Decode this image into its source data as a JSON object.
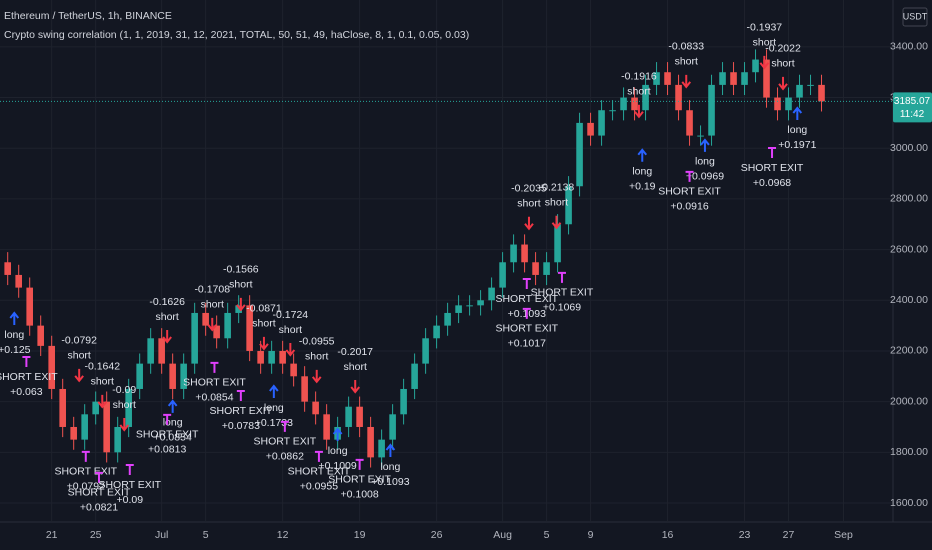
{
  "header": {
    "symbol": "Ethereum / TetherUS, 1h, BINANCE",
    "indicator": "Crypto swing correlation (1, 1, 2019, 31, 12, 2021, TOTAL, 50, 51, 49, haClose, 8, 1, 0.1, 0.05, 0.03)",
    "currency": "USDT"
  },
  "chart_data": {
    "type": "candlestick",
    "up_color": "#26a69a",
    "down_color": "#ef5350",
    "x": [
      17,
      18,
      19,
      20,
      21,
      22,
      23,
      24,
      25,
      26,
      27,
      28,
      29,
      30,
      31,
      32,
      33,
      34,
      35,
      36,
      37,
      38,
      39,
      40,
      41,
      42,
      43,
      44,
      45,
      46,
      47,
      48,
      49,
      50,
      51,
      52,
      53,
      54,
      55,
      56,
      57,
      58,
      59,
      60,
      61,
      62,
      63,
      64,
      65,
      66,
      67,
      68,
      69,
      70,
      71,
      72,
      73,
      74,
      75,
      76,
      77,
      78,
      79,
      80,
      81,
      82,
      83,
      84,
      85,
      86,
      87,
      88,
      89,
      90,
      91
    ],
    "open": [
      2550,
      2500,
      2450,
      2300,
      2220,
      2050,
      1900,
      1850,
      1950,
      2000,
      1800,
      1900,
      2050,
      2150,
      2250,
      2150,
      2050,
      2150,
      2350,
      2300,
      2250,
      2350,
      2380,
      2200,
      2150,
      2200,
      2150,
      2100,
      2000,
      1950,
      1850,
      1900,
      1980,
      1900,
      1780,
      1850,
      1950,
      2050,
      2150,
      2250,
      2300,
      2350,
      2380,
      2380,
      2400,
      2450,
      2550,
      2620,
      2550,
      2500,
      2550,
      2700,
      2850,
      3100,
      3050,
      3150,
      3150,
      3200,
      3150,
      3250,
      3300,
      3250,
      3150,
      3050,
      3050,
      3250,
      3300,
      3250,
      3300,
      3350,
      3200,
      3150,
      3200,
      3250,
      3250
    ],
    "high": [
      2590,
      2540,
      2490,
      2340,
      2260,
      2090,
      1940,
      1990,
      2040,
      2040,
      1940,
      2090,
      2190,
      2290,
      2290,
      2190,
      2190,
      2390,
      2390,
      2340,
      2390,
      2420,
      2420,
      2240,
      2240,
      2240,
      2190,
      2140,
      2040,
      1990,
      1940,
      2020,
      2020,
      1940,
      1890,
      1990,
      2090,
      2190,
      2290,
      2340,
      2390,
      2420,
      2420,
      2440,
      2490,
      2590,
      2660,
      2660,
      2590,
      2590,
      2740,
      2890,
      3140,
      3140,
      3190,
      3190,
      3240,
      3240,
      3290,
      3340,
      3340,
      3290,
      3190,
      3090,
      3290,
      3340,
      3340,
      3340,
      3390,
      3390,
      3240,
      3240,
      3290,
      3290,
      3290
    ],
    "low": [
      2460,
      2410,
      2260,
      2180,
      2010,
      1860,
      1810,
      1810,
      1910,
      1760,
      1760,
      1860,
      2010,
      2110,
      2110,
      2010,
      2010,
      2110,
      2260,
      2210,
      2210,
      2310,
      2160,
      2110,
      2110,
      2110,
      2060,
      1960,
      1910,
      1810,
      1810,
      1860,
      1860,
      1740,
      1740,
      1810,
      1910,
      2010,
      2110,
      2210,
      2260,
      2310,
      2340,
      2340,
      2360,
      2410,
      2510,
      2510,
      2460,
      2460,
      2510,
      2660,
      2810,
      3010,
      3010,
      3110,
      3110,
      3110,
      3110,
      3210,
      3210,
      3110,
      3010,
      3010,
      3010,
      3210,
      3210,
      3210,
      3260,
      3160,
      3110,
      3110,
      3160,
      3210,
      3145.07
    ],
    "close": [
      2500,
      2450,
      2300,
      2220,
      2050,
      1900,
      1850,
      1950,
      2000,
      1800,
      1900,
      2050,
      2150,
      2250,
      2150,
      2050,
      2150,
      2350,
      2300,
      2250,
      2350,
      2380,
      2200,
      2150,
      2200,
      2150,
      2100,
      2000,
      1950,
      1850,
      1900,
      1980,
      1900,
      1780,
      1850,
      1950,
      2050,
      2150,
      2250,
      2300,
      2350,
      2380,
      2380,
      2400,
      2450,
      2550,
      2620,
      2550,
      2500,
      2550,
      2700,
      2850,
      3100,
      3050,
      3150,
      3150,
      3200,
      3150,
      3250,
      3300,
      3250,
      3150,
      3050,
      3050,
      3250,
      3300,
      3250,
      3300,
      3350,
      3200,
      3150,
      3200,
      3250,
      3250,
      3185.07
    ],
    "last_price": 3185.07,
    "countdown": "11:42",
    "xlim": [
      16.3,
      97.5
    ],
    "ylim": [
      1525,
      3585
    ],
    "xticks": [
      21,
      25,
      {
        "value": 31,
        "label": "Jul"
      },
      {
        "value": 35,
        "label": "5"
      },
      {
        "value": 42,
        "label": "12"
      },
      {
        "value": 49,
        "label": "19"
      },
      {
        "value": 56,
        "label": "26"
      },
      {
        "value": 62,
        "label": "Aug"
      },
      {
        "value": 66,
        "label": "5"
      },
      {
        "value": 70,
        "label": "9"
      },
      {
        "value": 77,
        "label": "16"
      },
      {
        "value": 84,
        "label": "23"
      },
      {
        "value": 88,
        "label": "27"
      },
      {
        "value": 93,
        "label": "Sep"
      }
    ],
    "yticks": [
      {
        "value": 1600,
        "label": "1600.00"
      },
      {
        "value": 1800,
        "label": "1800.00"
      },
      {
        "value": 2000,
        "label": "2000.00"
      },
      {
        "value": 2200,
        "label": "2200.00"
      },
      {
        "value": 2400,
        "label": "2400.00"
      },
      {
        "value": 2600,
        "label": "2600.00"
      },
      {
        "value": 2800,
        "label": "2800.00"
      },
      {
        "value": 3000,
        "label": "3000.00"
      },
      {
        "value": 3200,
        "label": "3200.00"
      },
      {
        "value": 3400,
        "label": "3400.00"
      }
    ],
    "grid": true,
    "annotations": [
      {
        "x": 23.5,
        "y": 2240,
        "lines": [
          "-0.0792",
          "short"
        ]
      },
      {
        "x": 25.6,
        "y": 2137,
        "lines": [
          "-0.1642",
          "short"
        ]
      },
      {
        "x": 27.6,
        "y": 2046,
        "lines": [
          "-0.09",
          "short"
        ]
      },
      {
        "x": 31.5,
        "y": 2393,
        "lines": [
          "-0.1626",
          "short"
        ]
      },
      {
        "x": 35.6,
        "y": 2441,
        "lines": [
          "-0.1708",
          "short"
        ]
      },
      {
        "x": 38.2,
        "y": 2520,
        "lines": [
          "-0.1566",
          "short"
        ]
      },
      {
        "x": 40.3,
        "y": 2366,
        "lines": [
          "-0.0871",
          "short"
        ]
      },
      {
        "x": 42.7,
        "y": 2342,
        "lines": [
          "-0.1724",
          "short"
        ]
      },
      {
        "x": 45.1,
        "y": 2236,
        "lines": [
          "-0.0955",
          "short"
        ]
      },
      {
        "x": 48.6,
        "y": 2196,
        "lines": [
          "-0.2017",
          "short"
        ]
      },
      {
        "x": 64.4,
        "y": 2840,
        "lines": [
          "-0.2035",
          "short"
        ]
      },
      {
        "x": 66.9,
        "y": 2844,
        "lines": [
          "-0.2138",
          "short"
        ]
      },
      {
        "x": 74.4,
        "y": 3282,
        "lines": [
          "-0.1916",
          "short"
        ]
      },
      {
        "x": 78.7,
        "y": 3400,
        "lines": [
          "-0.0833",
          "short"
        ]
      },
      {
        "x": 85.8,
        "y": 3475,
        "lines": [
          "-0.1937",
          "short"
        ]
      },
      {
        "x": 87.5,
        "y": 3392,
        "lines": [
          "-0.2022",
          "short"
        ]
      },
      {
        "x": 17.6,
        "y": 2263,
        "lines": [
          "long",
          "+0.125"
        ]
      },
      {
        "x": 18.7,
        "y": 2097,
        "lines": [
          "SHORT EXIT",
          "+0.063"
        ]
      },
      {
        "x": 24.1,
        "y": 1723,
        "lines": [
          "SHORT EXIT",
          "+0.0792"
        ]
      },
      {
        "x": 25.3,
        "y": 1640,
        "lines": [
          "SHORT EXIT",
          "+0.0821"
        ]
      },
      {
        "x": 28.1,
        "y": 1671,
        "lines": [
          "SHORT EXIT",
          "+0.09"
        ]
      },
      {
        "x": 32,
        "y": 1916,
        "lines": [
          "long",
          "+0.0854"
        ]
      },
      {
        "x": 31.5,
        "y": 1869,
        "lines": [
          "SHORT EXIT",
          "+0.0813"
        ]
      },
      {
        "x": 35.8,
        "y": 2074,
        "lines": [
          "SHORT EXIT",
          "+0.0854"
        ]
      },
      {
        "x": 38.2,
        "y": 1963,
        "lines": [
          "SHORT EXIT",
          "+0.0783"
        ]
      },
      {
        "x": 41.2,
        "y": 1975,
        "lines": [
          "long",
          "+0.1733"
        ]
      },
      {
        "x": 42.2,
        "y": 1841,
        "lines": [
          "SHORT EXIT",
          "+0.0862"
        ]
      },
      {
        "x": 45.3,
        "y": 1723,
        "lines": [
          "SHORT EXIT",
          "+0.0955"
        ]
      },
      {
        "x": 47,
        "y": 1805,
        "lines": [
          "long",
          "+0.1009"
        ]
      },
      {
        "x": 49,
        "y": 1691,
        "lines": [
          "SHORT EXIT",
          "+0.1008"
        ]
      },
      {
        "x": 51.8,
        "y": 1742,
        "lines": [
          "long",
          "+0.1093"
        ]
      },
      {
        "x": 64.2,
        "y": 2405,
        "lines": [
          "SHORT EXIT",
          "+0.1093"
        ]
      },
      {
        "x": 64.2,
        "y": 2287,
        "lines": [
          "SHORT EXIT",
          "+0.1017"
        ]
      },
      {
        "x": 67.4,
        "y": 2429,
        "lines": [
          "SHORT EXIT",
          "+0.1069"
        ]
      },
      {
        "x": 74.7,
        "y": 2907,
        "lines": [
          "long",
          "+0.19"
        ]
      },
      {
        "x": 80.4,
        "y": 2946,
        "lines": [
          "long",
          "+0.0969"
        ]
      },
      {
        "x": 79,
        "y": 2828,
        "lines": [
          "SHORT EXIT",
          "+0.0916"
        ]
      },
      {
        "x": 86.5,
        "y": 2922,
        "lines": [
          "SHORT EXIT",
          "+0.0968"
        ]
      },
      {
        "x": 88.8,
        "y": 3072,
        "lines": [
          "long",
          "+0.1971"
        ]
      }
    ]
  }
}
